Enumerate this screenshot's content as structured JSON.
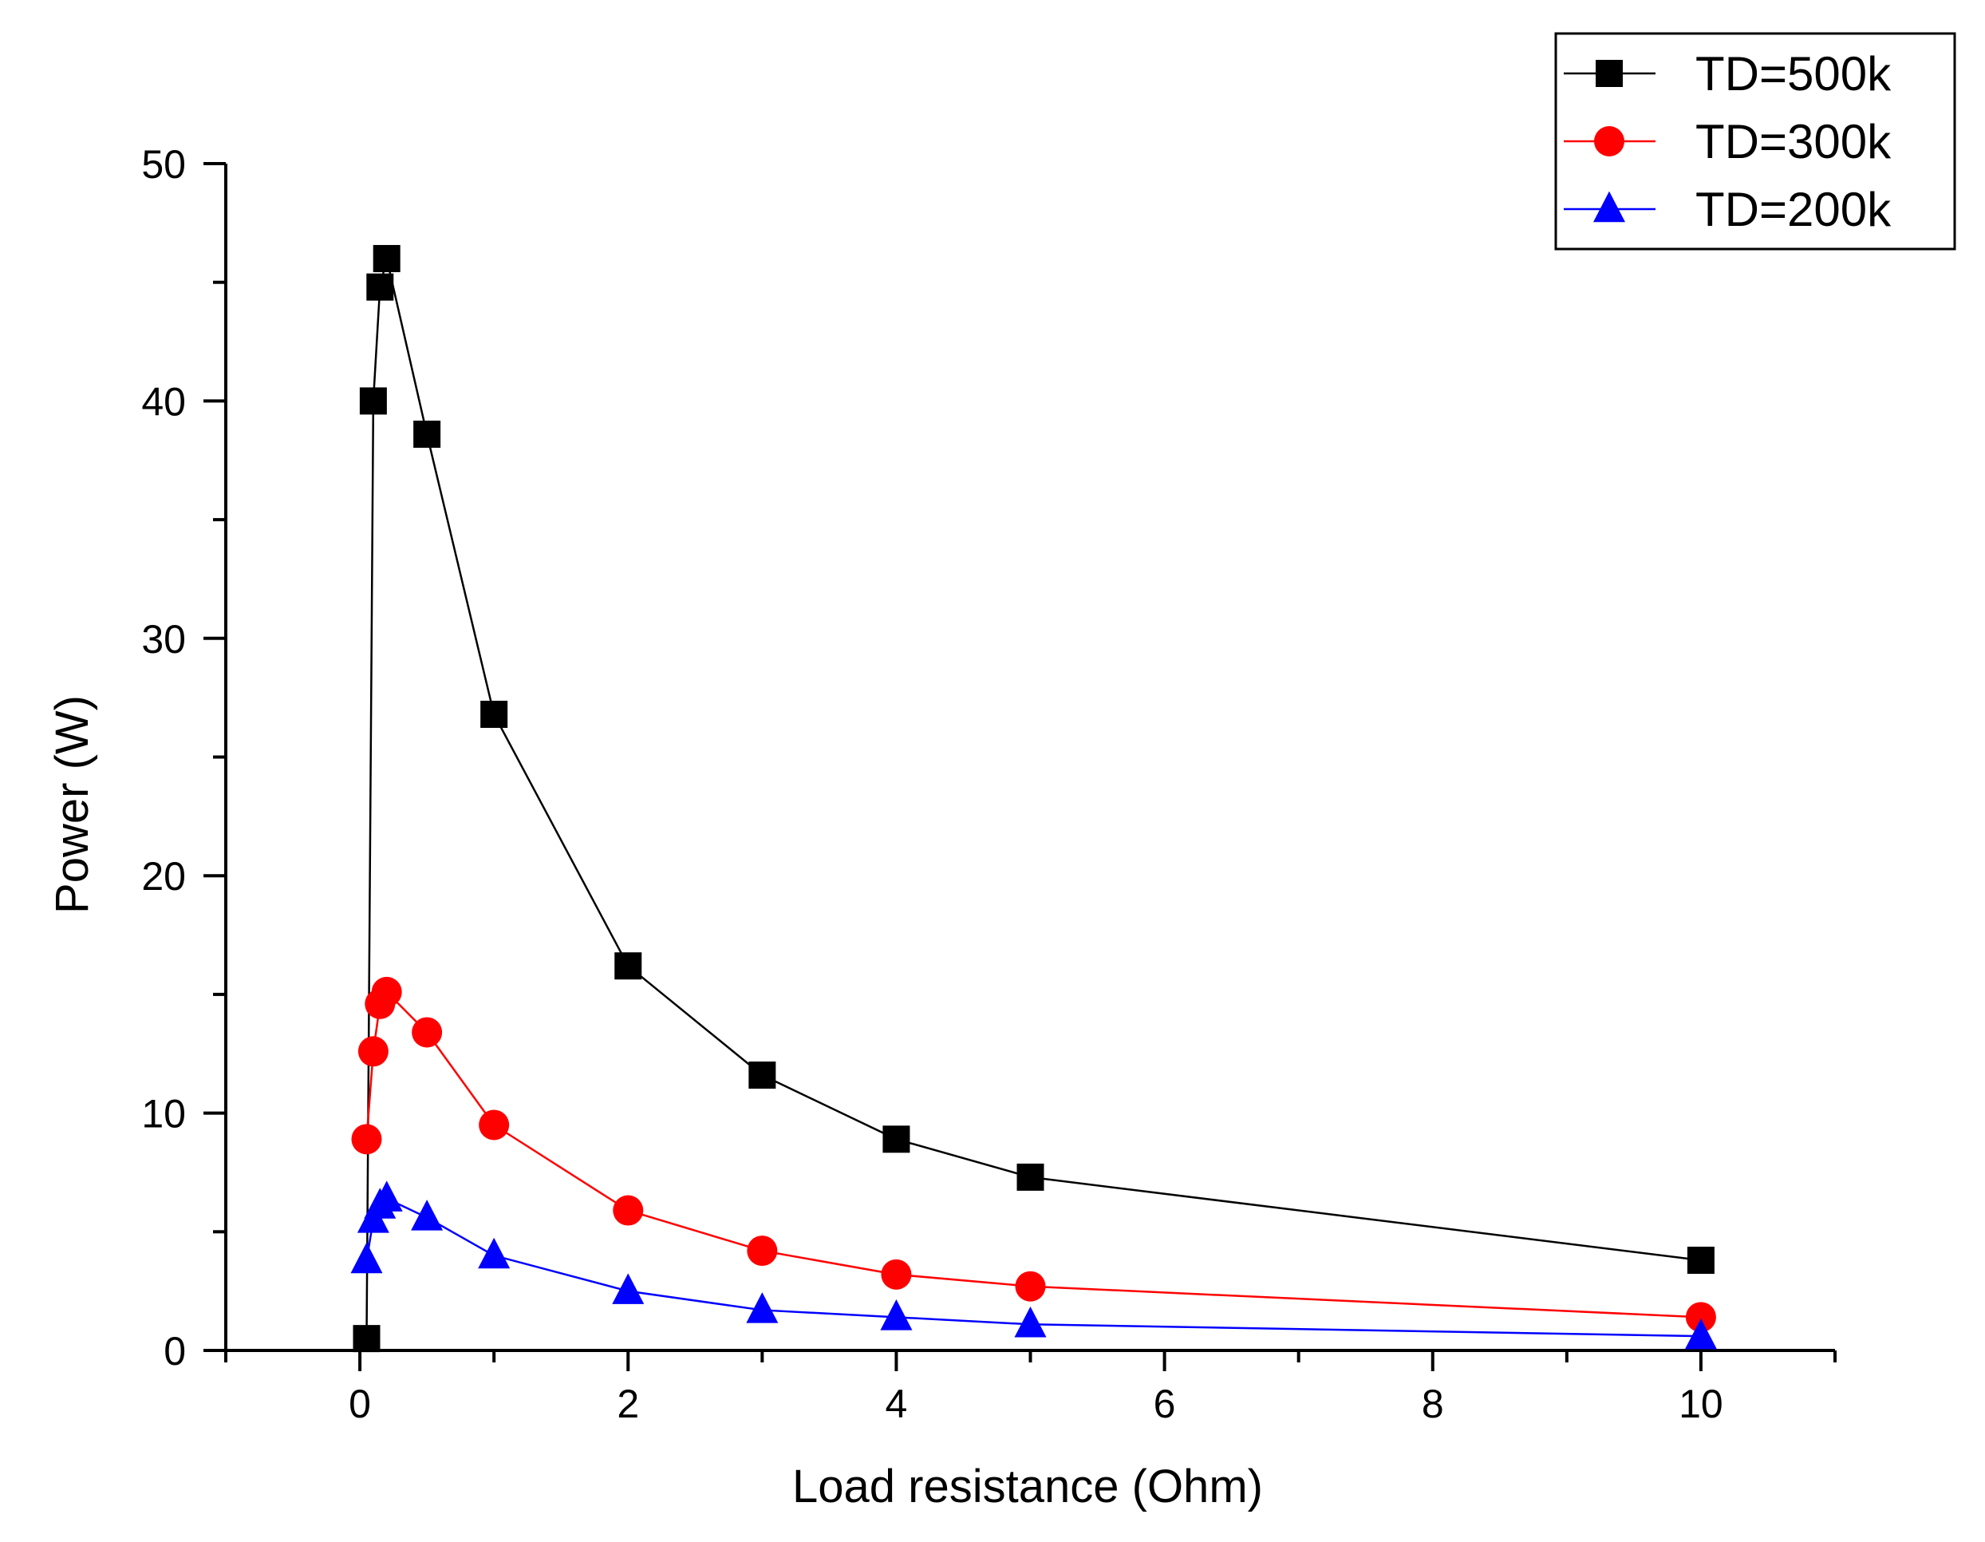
{
  "chart_data": {
    "type": "line",
    "title": "",
    "xlabel": "Load resistance (Ohm)",
    "ylabel": "Power (W)",
    "xlim": [
      -1,
      11
    ],
    "ylim": [
      0,
      50
    ],
    "x_ticks": [
      0,
      2,
      4,
      6,
      8,
      10
    ],
    "x_tick_labels": [
      "0",
      "2",
      "4",
      "6",
      "8",
      "10"
    ],
    "y_ticks": [
      0,
      10,
      20,
      30,
      40,
      50
    ],
    "y_tick_labels": [
      "0",
      "10",
      "20",
      "30",
      "40",
      "50"
    ],
    "grid": false,
    "legend_position": "top-right",
    "series": [
      {
        "name": "TD=500k",
        "color": "#000000",
        "marker": "square",
        "x": [
          0.05,
          0.1,
          0.15,
          0.2,
          0.5,
          1,
          2,
          3,
          4,
          5,
          10
        ],
        "values": [
          0.5,
          40.0,
          44.8,
          46.0,
          38.6,
          26.8,
          16.2,
          11.6,
          8.9,
          7.3,
          3.8
        ]
      },
      {
        "name": "TD=300k",
        "color": "#ff0000",
        "marker": "circle",
        "x": [
          0.05,
          0.1,
          0.15,
          0.2,
          0.5,
          1,
          2,
          3,
          4,
          5,
          10
        ],
        "values": [
          8.9,
          12.6,
          14.6,
          15.1,
          13.4,
          9.5,
          5.9,
          4.2,
          3.2,
          2.7,
          1.4
        ]
      },
      {
        "name": "TD=200k",
        "color": "#0000ff",
        "marker": "triangle",
        "x": [
          0.05,
          0.1,
          0.15,
          0.2,
          0.5,
          1,
          2,
          3,
          4,
          5,
          10
        ],
        "values": [
          3.8,
          5.5,
          6.1,
          6.4,
          5.6,
          4.0,
          2.5,
          1.7,
          1.4,
          1.1,
          0.6
        ]
      }
    ]
  }
}
